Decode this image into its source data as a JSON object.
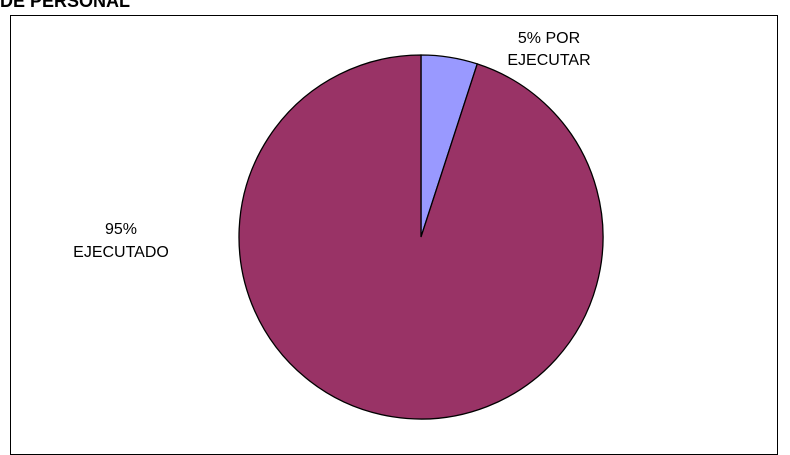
{
  "chart_data": {
    "type": "pie",
    "title": "DE PERSONAL",
    "slices": [
      {
        "label_lines": [
          "5% POR",
          "EJECUTAR"
        ],
        "value": 5,
        "color": "#9999FF"
      },
      {
        "label_lines": [
          "95%",
          "EJECUTADO"
        ],
        "value": 95,
        "color": "#993366"
      }
    ],
    "outline_color": "#000000",
    "legend": "none"
  }
}
